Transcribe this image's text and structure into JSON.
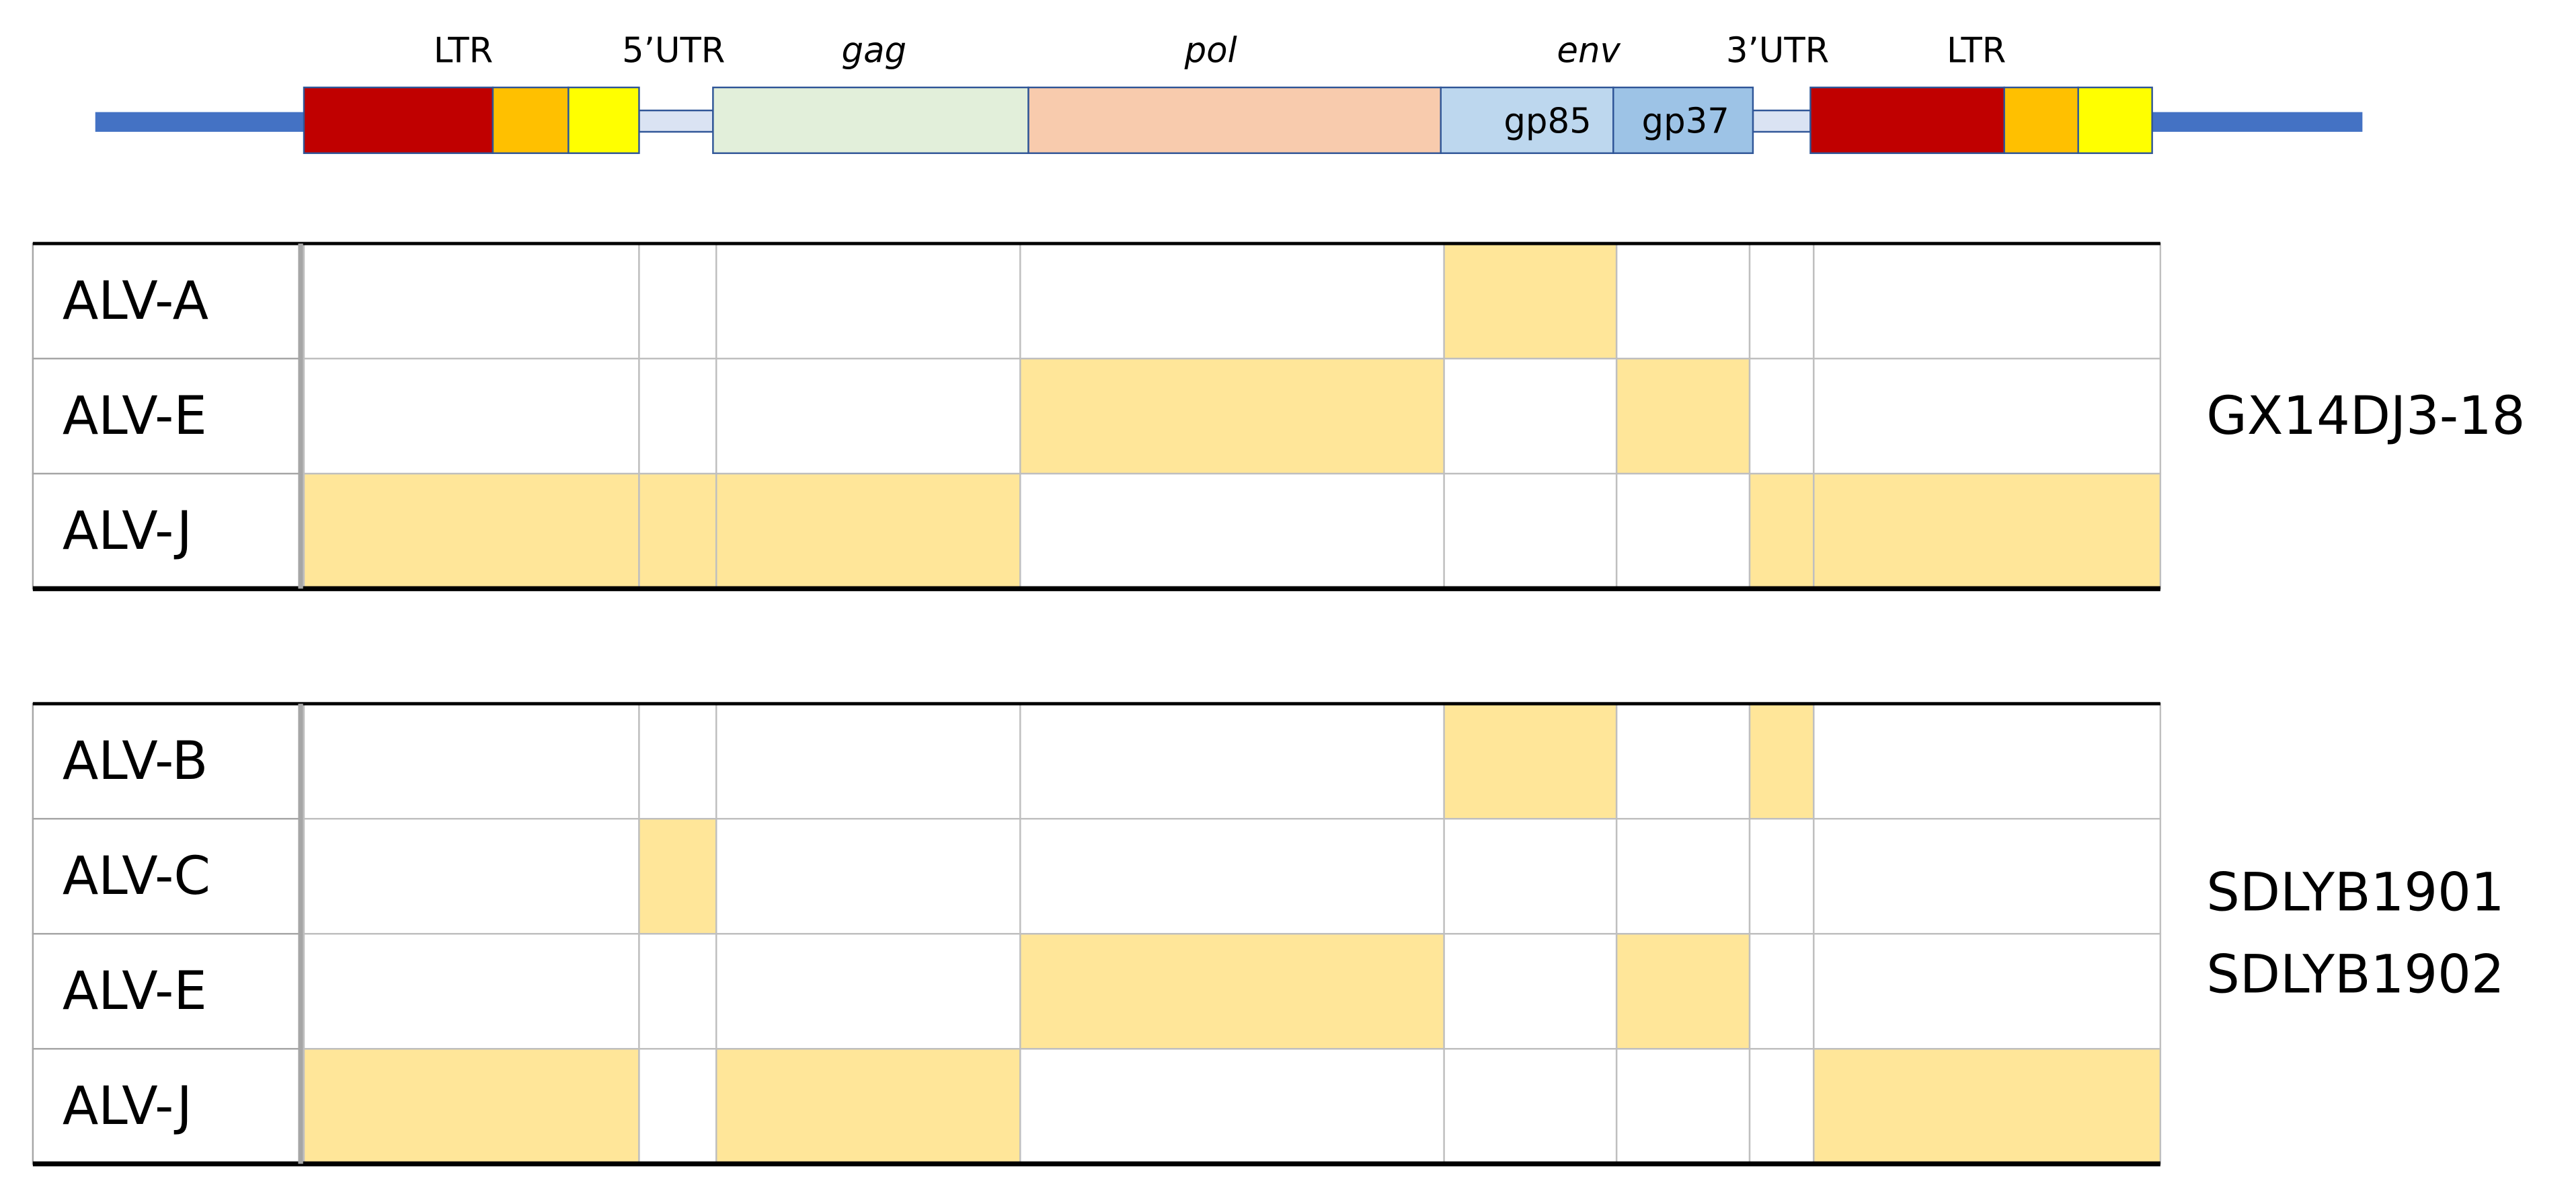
{
  "genome_map": {
    "labels": [
      "LTR",
      "5’UTR",
      "gag",
      "pol",
      "env",
      "3’UTR",
      "LTR"
    ],
    "env_parts": [
      "gp85",
      "gp37"
    ]
  },
  "tables": [
    {
      "rows": [
        {
          "label": "ALV-A",
          "shaded": [
            false,
            false,
            false,
            false,
            true,
            false,
            false,
            false
          ]
        },
        {
          "label": "ALV-E",
          "shaded": [
            false,
            false,
            false,
            true,
            false,
            true,
            false,
            false
          ]
        },
        {
          "label": "ALV-J",
          "shaded": [
            true,
            true,
            true,
            false,
            false,
            false,
            true,
            true
          ]
        }
      ],
      "strains": [
        "GX14DJ3-18"
      ]
    },
    {
      "rows": [
        {
          "label": "ALV-B",
          "shaded": [
            false,
            false,
            false,
            false,
            true,
            false,
            true,
            false
          ]
        },
        {
          "label": "ALV-C",
          "shaded": [
            false,
            true,
            false,
            false,
            false,
            false,
            false,
            false
          ]
        },
        {
          "label": "ALV-E",
          "shaded": [
            false,
            false,
            false,
            true,
            false,
            true,
            false,
            false
          ]
        },
        {
          "label": "ALV-J",
          "shaded": [
            true,
            false,
            true,
            false,
            false,
            false,
            false,
            true
          ]
        }
      ],
      "strains": [
        "SDLYB1901",
        "SDLYB1902"
      ]
    }
  ]
}
